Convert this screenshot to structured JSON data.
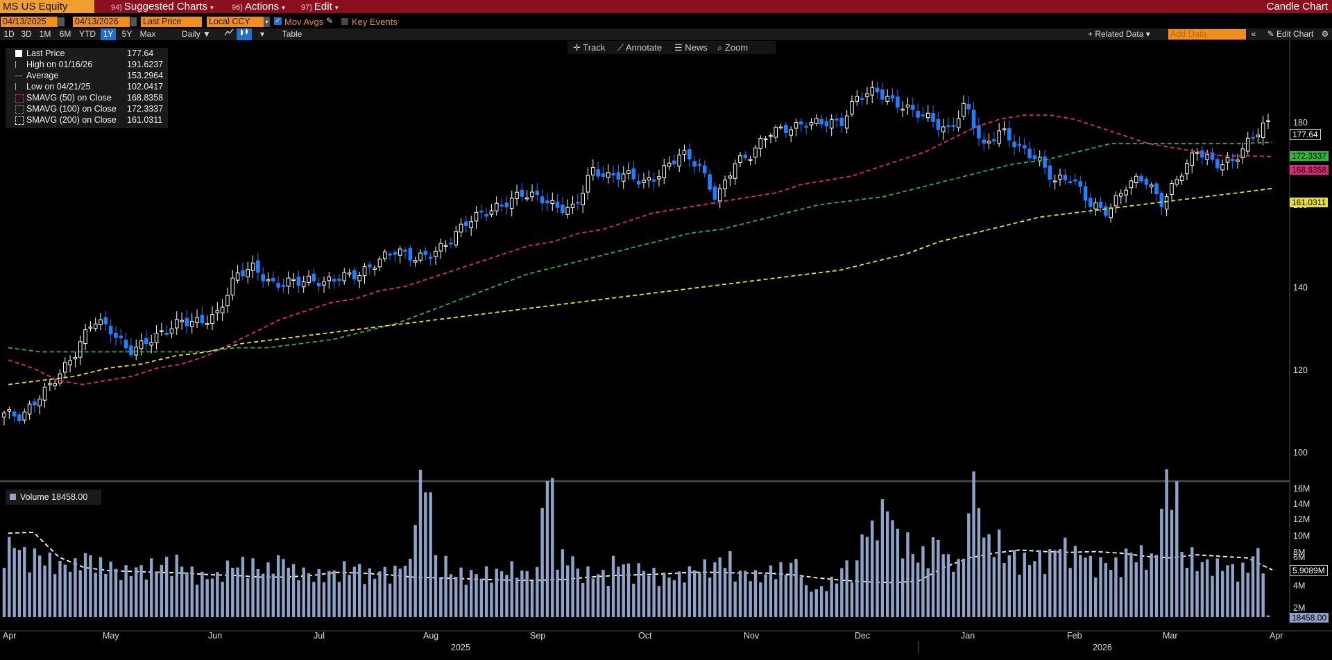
{
  "header": {
    "ticker": "MS US Equity",
    "menus": [
      {
        "num": "94)",
        "label": "Suggested Charts"
      },
      {
        "num": "96)",
        "label": "Actions"
      },
      {
        "num": "97)",
        "label": "Edit"
      }
    ],
    "chart_kind": "Candle Chart"
  },
  "controls": {
    "start_date": "04/13/2025",
    "end_date": "04/13/2026",
    "field": "Last Price",
    "currency": "Local CCY",
    "mov_avgs": "Mov Avgs",
    "key_events": "Key Events"
  },
  "periods": [
    "1D",
    "3D",
    "1M",
    "6M",
    "YTD",
    "1Y",
    "5Y",
    "Max"
  ],
  "selected_period": "1Y",
  "frequency": "Daily",
  "table_label": "Table",
  "related_data": "+ Related Data",
  "add_data_placeholder": "Add Data",
  "edit_chart": "Edit Chart",
  "tools": [
    "Track",
    "Annotate",
    "News",
    "Zoom"
  ],
  "legend": [
    {
      "label": "Last Price",
      "value": "177.64"
    },
    {
      "label": "High on 01/16/26",
      "value": "191.6237"
    },
    {
      "label": "Average",
      "value": "153.2964"
    },
    {
      "label": "Low on 04/21/25",
      "value": "102.0417"
    },
    {
      "label": "SMAVG (50)  on Close",
      "value": "168.8358"
    },
    {
      "label": "SMAVG (100)  on Close",
      "value": "172.3337"
    },
    {
      "label": "SMAVG (200)  on Close",
      "value": "161.0311"
    }
  ],
  "volume_legend": "Volume  18458.00",
  "colors": {
    "up": "#ffffff",
    "down": "#1f7fff",
    "sma50": "#e0287a",
    "sma100": "#2fb33a",
    "sma200": "#e8e02a",
    "volume": "#8fa3c8",
    "accent": "#f28f1c",
    "header": "#8b0f1f"
  },
  "chart_data": {
    "type": "candlestick",
    "price_axis": {
      "ylim": [
        90,
        197
      ],
      "ticks": [
        100,
        120,
        140,
        160,
        180
      ]
    },
    "volume_axis": {
      "ylim": [
        0,
        17000000
      ],
      "ticks": [
        "2M",
        "4M",
        "6M",
        "8M",
        "10M",
        "12M",
        "14M",
        "16M"
      ]
    },
    "last_labels": {
      "last_price": "177.64",
      "sma100": "172.3337",
      "sma50": "168.8358",
      "sma200": "161.0311",
      "volume_ma": "5.9089M",
      "volume": "18458.00"
    },
    "months": [
      "Apr",
      "May",
      "Jun",
      "Jul",
      "Aug",
      "Sep",
      "Oct",
      "Nov",
      "Dec",
      "Jan",
      "Feb",
      "Mar",
      "Apr"
    ],
    "years": [
      "2025",
      "2026"
    ],
    "close_weekly": [
      106,
      104,
      110,
      116,
      121,
      128,
      126,
      122,
      124,
      125,
      128,
      129,
      131,
      139,
      141,
      138,
      139,
      138,
      137,
      140,
      141,
      143,
      145,
      144,
      146,
      148,
      152,
      155,
      158,
      160,
      158,
      156,
      157,
      166,
      163,
      164,
      163,
      166,
      169,
      166,
      159,
      168,
      169,
      174,
      176,
      178,
      177,
      176,
      184,
      186,
      182,
      179,
      178,
      176,
      182,
      170,
      175,
      172,
      169,
      162,
      163,
      158,
      156,
      161,
      163,
      158,
      165,
      170,
      166,
      168,
      174,
      177.64
    ],
    "sma50_weekly": [
      119,
      117,
      114,
      113,
      114,
      115,
      117,
      118,
      120,
      123,
      126,
      129,
      131,
      133,
      134,
      136,
      137,
      139,
      141,
      143,
      145,
      147,
      148,
      150,
      151,
      153,
      155,
      156,
      157,
      158,
      159,
      160,
      162,
      163,
      164,
      166,
      168,
      170,
      173,
      176,
      178,
      179,
      179,
      178,
      176,
      174,
      172,
      171,
      170,
      169,
      169,
      168.8358
    ],
    "sma100_weekly": [
      122,
      121,
      121,
      121,
      121,
      121,
      121,
      122,
      122,
      123,
      124,
      126,
      128,
      131,
      134,
      137,
      140,
      142,
      144,
      146,
      148,
      150,
      151,
      153,
      155,
      157,
      158,
      159,
      161,
      163,
      165,
      167,
      168,
      170,
      172,
      172,
      172,
      172,
      172,
      172.3337
    ],
    "sma200_weekly": [
      113,
      114,
      115,
      117,
      118,
      120,
      121,
      123,
      124,
      125,
      126,
      127,
      128,
      129,
      130,
      131,
      132,
      133,
      134,
      135,
      136,
      137,
      138,
      139,
      140,
      141,
      143,
      145,
      148,
      150,
      152,
      154,
      155,
      156,
      157,
      158,
      159,
      160,
      161.0311
    ],
    "volume_ma_weekly": [
      10.5,
      10.6,
      7.5,
      6.2,
      5.8,
      5.7,
      5.6,
      5.5,
      5.3,
      5.2,
      5.0,
      5.0,
      5.2,
      5.6,
      5.5,
      5.3,
      5.0,
      4.9,
      4.8,
      4.7,
      4.6,
      4.6,
      4.7,
      5.0,
      5.2,
      5.3,
      5.4,
      5.6,
      5.6,
      5.5,
      5.5,
      5.3,
      4.9,
      4.6,
      4.4,
      4.3,
      4.5,
      6.2,
      7.4,
      8.0,
      8.4,
      8.2,
      8.1,
      8.2,
      8.0,
      7.6,
      7.4,
      7.8,
      7.6,
      7.4,
      5.9089
    ],
    "volume_weekly": [
      8.2,
      7.1,
      6.5,
      5.9,
      6.8,
      6.0,
      5.2,
      5.5,
      5.9,
      6.3,
      5.2,
      4.6,
      5.8,
      6.1,
      5.5,
      6.5,
      5.3,
      4.8,
      5.0,
      5.6,
      4.9,
      5.2,
      6.0,
      15.0,
      6.3,
      5.0,
      4.9,
      5.1,
      5.6,
      5.0,
      14.9,
      6.8,
      5.1,
      4.9,
      6.2,
      5.5,
      5.0,
      4.6,
      5.3,
      5.8,
      6.6,
      5.0,
      4.7,
      5.5,
      6.1,
      3.2,
      4.1,
      5.8,
      9.8,
      12.2,
      8.9,
      7.1,
      8.5,
      6.3,
      14.6,
      8.8,
      7.0,
      6.5,
      6.9,
      8.1,
      7.3,
      6.2,
      6.0,
      7.2,
      6.8,
      14.8,
      7.0,
      6.1,
      5.9,
      5.5,
      7.1,
      4.3
    ]
  }
}
